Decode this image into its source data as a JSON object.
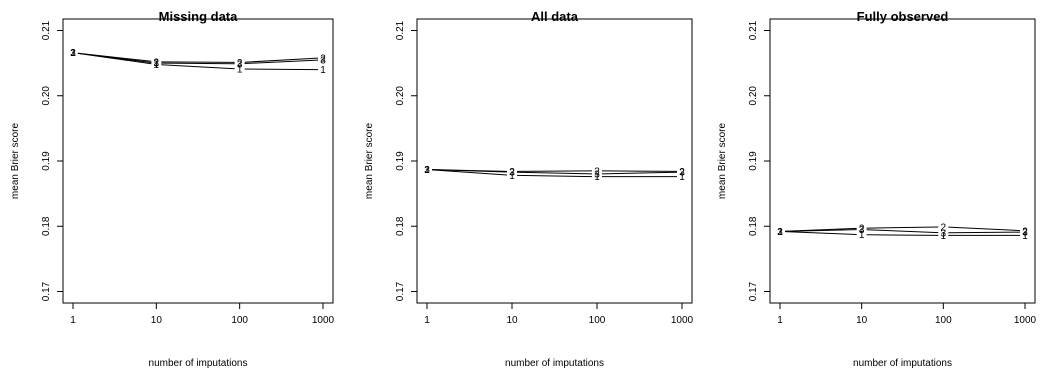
{
  "chart_data": [
    {
      "type": "line",
      "title": "Missing data",
      "xlabel": "number of imputations",
      "ylabel": "mean Brier score",
      "xscale": "log",
      "x": [
        1,
        10,
        100,
        1000
      ],
      "xticks": [
        "1",
        "10",
        "100",
        "1000"
      ],
      "ylim": [
        0.17,
        0.21
      ],
      "yticks": [
        "0.17",
        "0.18",
        "0.19",
        "0.20",
        "0.21"
      ],
      "grid": false,
      "series": [
        {
          "name": "1",
          "values": [
            0.2066,
            0.2048,
            0.2041,
            0.204
          ]
        },
        {
          "name": "2",
          "values": [
            0.2066,
            0.2052,
            0.2051,
            0.2058
          ]
        },
        {
          "name": "3",
          "values": [
            0.2066,
            0.205,
            0.2049,
            0.2055
          ]
        }
      ]
    },
    {
      "type": "line",
      "title": "All data",
      "xlabel": "number of imputations",
      "ylabel": "mean Brier score",
      "xscale": "log",
      "x": [
        1,
        10,
        100,
        1000
      ],
      "xticks": [
        "1",
        "10",
        "100",
        "1000"
      ],
      "ylim": [
        0.17,
        0.21
      ],
      "yticks": [
        "0.17",
        "0.18",
        "0.19",
        "0.20",
        "0.21"
      ],
      "grid": false,
      "series": [
        {
          "name": "1",
          "values": [
            0.1887,
            0.1878,
            0.1876,
            0.1876
          ]
        },
        {
          "name": "2",
          "values": [
            0.1887,
            0.1884,
            0.1885,
            0.1884
          ]
        },
        {
          "name": "3",
          "values": [
            0.1887,
            0.1883,
            0.188,
            0.1883
          ]
        }
      ]
    },
    {
      "type": "line",
      "title": "Fully observed",
      "xlabel": "number of imputations",
      "ylabel": "mean Brier score",
      "xscale": "log",
      "x": [
        1,
        10,
        100,
        1000
      ],
      "xticks": [
        "1",
        "10",
        "100",
        "1000"
      ],
      "ylim": [
        0.17,
        0.21
      ],
      "yticks": [
        "0.17",
        "0.18",
        "0.19",
        "0.20",
        "0.21"
      ],
      "grid": false,
      "series": [
        {
          "name": "1",
          "values": [
            0.1792,
            0.1787,
            0.1786,
            0.1786
          ]
        },
        {
          "name": "2",
          "values": [
            0.1792,
            0.1797,
            0.1799,
            0.1793
          ]
        },
        {
          "name": "3",
          "values": [
            0.1792,
            0.1795,
            0.179,
            0.1791
          ]
        }
      ]
    }
  ]
}
